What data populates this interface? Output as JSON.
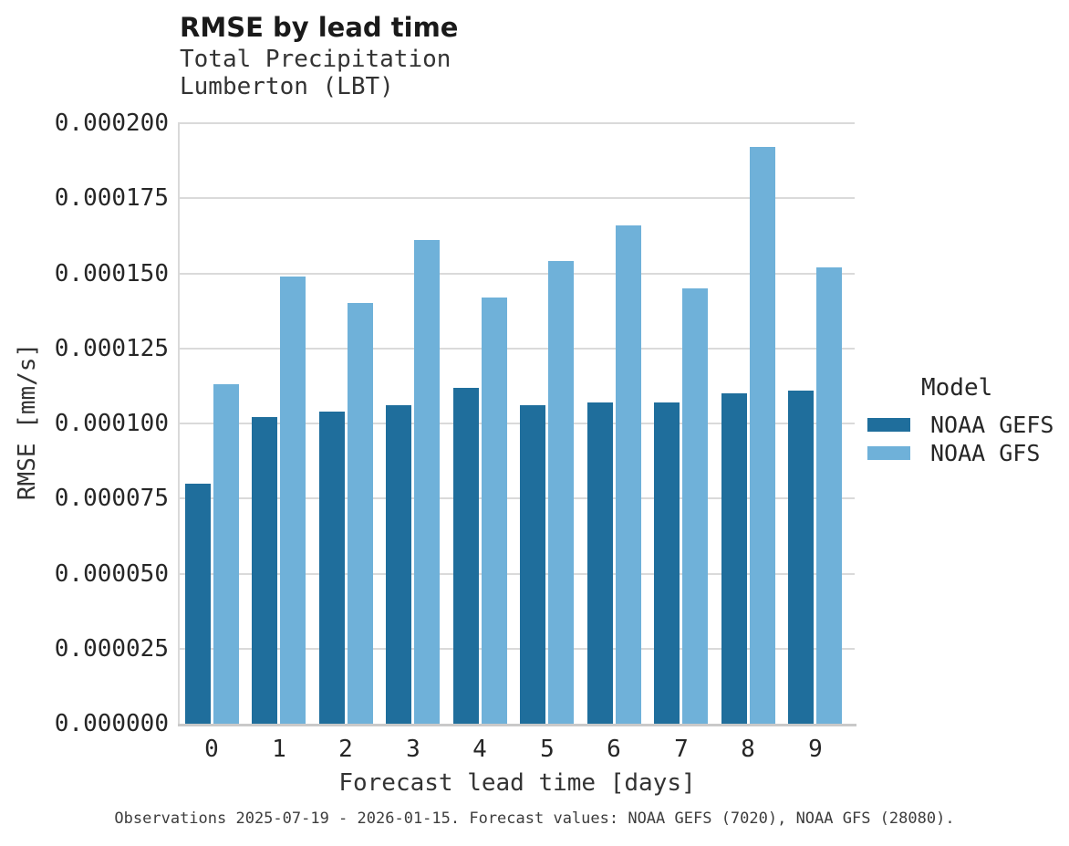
{
  "title": "RMSE by lead time",
  "subtitle": {
    "line1": "Total Precipitation",
    "line2": "Lumberton (LBT)"
  },
  "footnote": "Observations 2025-07-19 - 2026-01-15. Forecast values: NOAA GEFS (7020), NOAA GFS (28080).",
  "legend": {
    "title": "Model",
    "items": [
      {
        "label": "NOAA GEFS",
        "color": "#1f6e9c"
      },
      {
        "label": "NOAA GFS",
        "color": "#6fb1d9"
      }
    ]
  },
  "colors": {
    "gridline": "#dadada",
    "axis_line": "#c9c9c9",
    "series_dark": "#1f6e9c",
    "series_light": "#6fb1d9"
  },
  "chart_data": {
    "type": "bar",
    "title": "RMSE by lead time",
    "subtitle": [
      "Total Precipitation",
      "Lumberton (LBT)"
    ],
    "xlabel": "Forecast lead time [days]",
    "ylabel": "RMSE [mm/s]",
    "categories": [
      "0",
      "1",
      "2",
      "3",
      "4",
      "5",
      "6",
      "7",
      "8",
      "9"
    ],
    "series": [
      {
        "name": "NOAA GEFS",
        "color": "#1f6e9c",
        "values": [
          8e-05,
          0.000102,
          0.000104,
          0.000106,
          0.000112,
          0.000106,
          0.000107,
          0.000107,
          0.00011,
          0.000111
        ]
      },
      {
        "name": "NOAA GFS",
        "color": "#6fb1d9",
        "values": [
          0.000113,
          0.000149,
          0.00014,
          0.000161,
          0.000142,
          0.000154,
          0.000166,
          0.000145,
          0.000192,
          0.000152
        ]
      }
    ],
    "ylim": [
      0,
      0.0002
    ],
    "y_ticks": [
      "0.000000",
      "0.000025",
      "0.000050",
      "0.000075",
      "0.000100",
      "0.000125",
      "0.000150",
      "0.000175",
      "0.000200"
    ],
    "grid": true,
    "legend_position": "right",
    "legend_title": "Model"
  }
}
